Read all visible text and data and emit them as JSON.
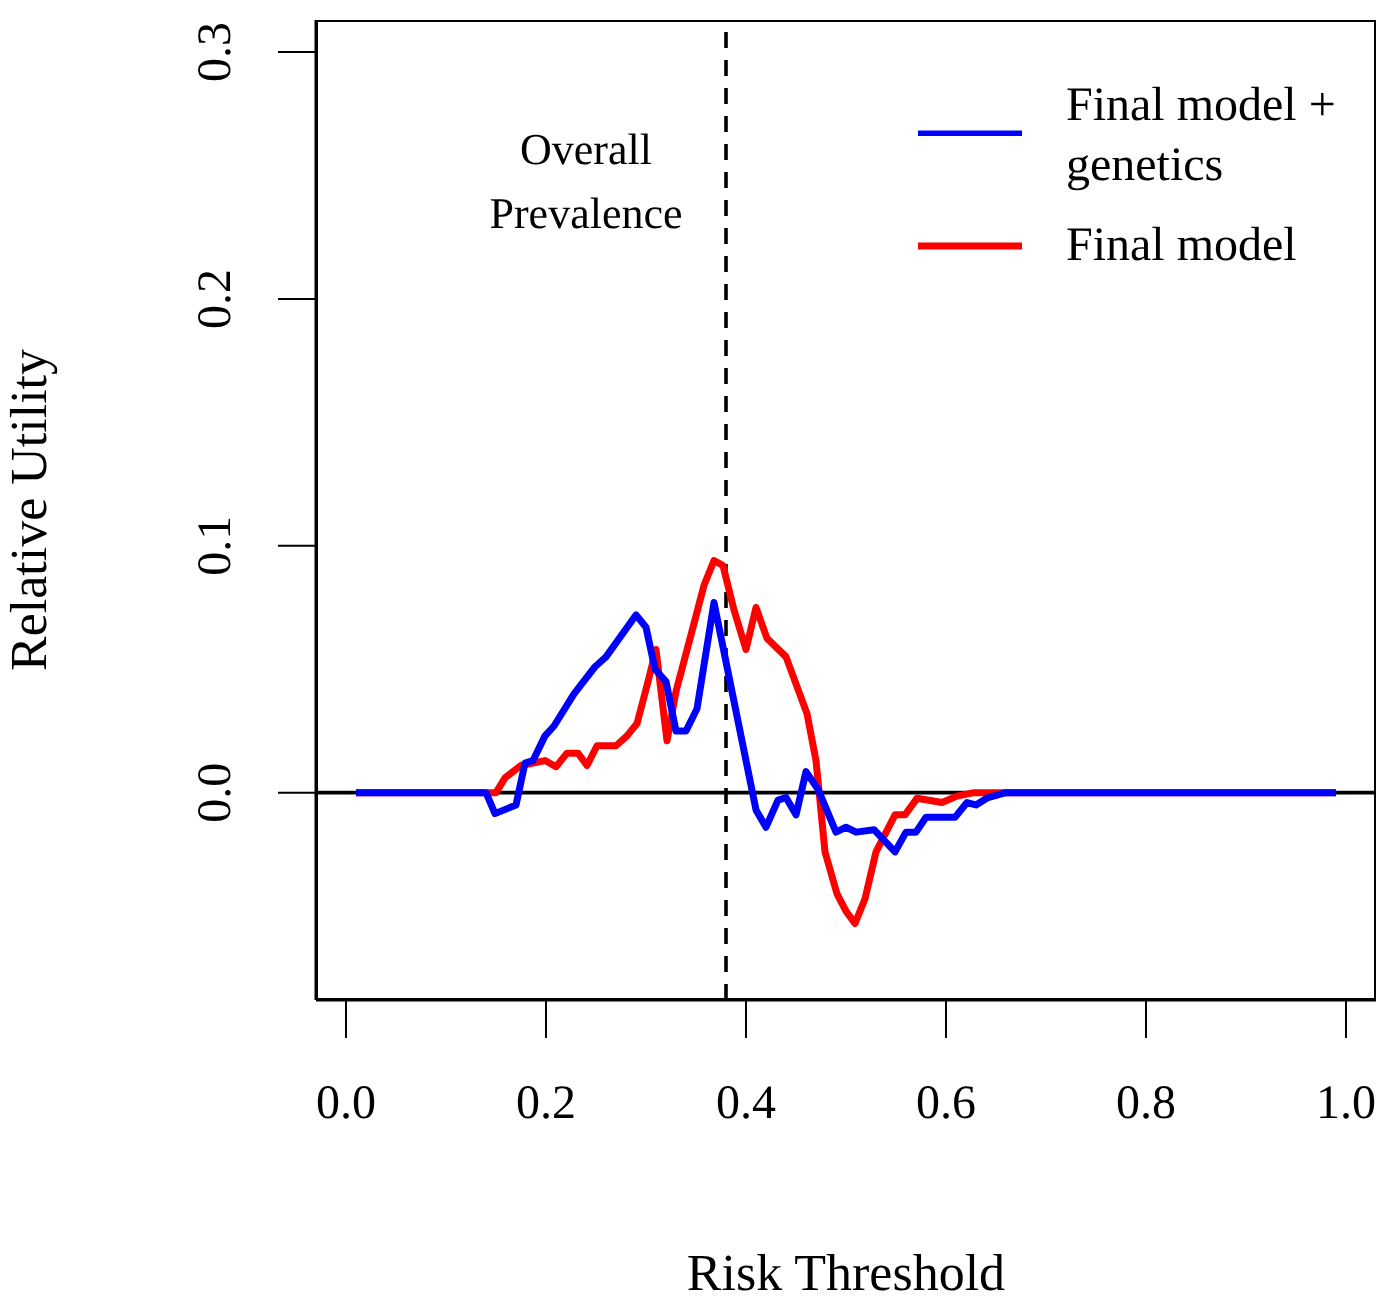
{
  "chart_data": {
    "type": "line",
    "xlabel": "Risk Threshold",
    "ylabel": "Relative Utility",
    "xlim": [
      -0.03,
      1.03
    ],
    "ylim": [
      -0.084,
      0.313
    ],
    "xticks": [
      {
        "value": 0,
        "label": "0.0"
      },
      0.2,
      0.4,
      0.6,
      0.8,
      {
        "value": 1,
        "label": "1.0"
      }
    ],
    "yticks": [
      {
        "value": 0,
        "label": "0.0"
      },
      0.1,
      0.2,
      0.3
    ],
    "legend": "top right",
    "grid": false,
    "marker": "none",
    "line_style": "solid",
    "ref_lines": [
      {
        "axis": "y",
        "value": 0,
        "color": "#000000",
        "line_style": "solid"
      },
      {
        "axis": "x",
        "value": 0.38,
        "label": "Overall Prevalence",
        "color": "#000000",
        "line_style": "dashed"
      }
    ],
    "series": [
      {
        "name": "Final model",
        "color": "#ff0000",
        "x": [
          0.01,
          0.15,
          0.159,
          0.175,
          0.199,
          0.21,
          0.221,
          0.232,
          0.241,
          0.251,
          0.27,
          0.281,
          0.291,
          0.302,
          0.31,
          0.321,
          0.33,
          0.347,
          0.358,
          0.368,
          0.377,
          0.388,
          0.4,
          0.41,
          0.421,
          0.44,
          0.461,
          0.47,
          0.479,
          0.491,
          0.5,
          0.509,
          0.519,
          0.53,
          0.549,
          0.559,
          0.571,
          0.596,
          0.611,
          0.628,
          0.99
        ],
        "values": [
          0,
          0,
          0.006,
          0.011,
          0.013,
          0.0105,
          0.016,
          0.016,
          0.011,
          0.019,
          0.019,
          0.023,
          0.028,
          0.045,
          0.058,
          0.021,
          0.041,
          0.067,
          0.084,
          0.094,
          0.092,
          0.074,
          0.058,
          0.075,
          0.0625,
          0.055,
          0.032,
          0.013,
          -0.024,
          -0.041,
          -0.048,
          -0.053,
          -0.043,
          -0.024,
          -0.009,
          -0.009,
          -0.0023,
          -0.004,
          -0.0014,
          0,
          0
        ]
      },
      {
        "name": "Final model + genetics",
        "color": "#0000ff",
        "x": [
          0.01,
          0.14,
          0.149,
          0.17,
          0.179,
          0.187,
          0.199,
          0.208,
          0.228,
          0.249,
          0.26,
          0.29,
          0.3,
          0.309,
          0.32,
          0.33,
          0.34,
          0.351,
          0.368,
          0.41,
          0.42,
          0.432,
          0.44,
          0.45,
          0.46,
          0.472,
          0.49,
          0.5,
          0.51,
          0.528,
          0.549,
          0.56,
          0.57,
          0.58,
          0.609,
          0.621,
          0.63,
          0.642,
          0.66,
          0.99
        ],
        "values": [
          0,
          0,
          -0.0085,
          -0.005,
          0.012,
          0.013,
          0.023,
          0.027,
          0.04,
          0.051,
          0.055,
          0.072,
          0.067,
          0.05,
          0.045,
          0.025,
          0.025,
          0.034,
          0.077,
          -0.007,
          -0.014,
          -0.003,
          -0.002,
          -0.009,
          0.0085,
          0.0014,
          -0.016,
          -0.014,
          -0.016,
          -0.015,
          -0.024,
          -0.016,
          -0.016,
          -0.01,
          -0.01,
          -0.004,
          -0.005,
          -0.002,
          0,
          0
        ]
      }
    ]
  }
}
